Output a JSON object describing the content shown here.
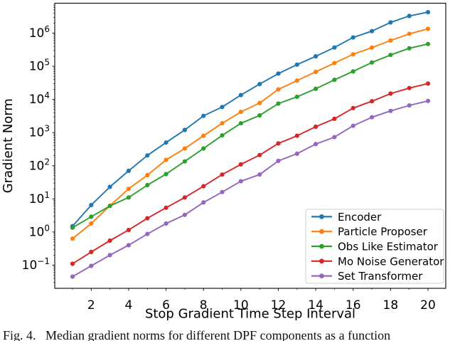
{
  "figure": {
    "caption": "Fig. 4.   Median gradient norms for different DPF components as a function",
    "background": "#ffffff"
  },
  "chart_data": {
    "type": "line",
    "title": "",
    "xlabel": "Stop Gradient Time Step Interval",
    "ylabel": "Gradient Norm",
    "yscale": "log",
    "xlim": [
      0.05,
      20.95
    ],
    "ylim": [
      0.02,
      8000000
    ],
    "xticks": [
      2,
      4,
      6,
      8,
      10,
      12,
      14,
      16,
      18,
      20
    ],
    "ytick_exponents": [
      -1,
      0,
      1,
      2,
      3,
      4,
      5,
      6
    ],
    "grid": false,
    "x": [
      1,
      2,
      3,
      4,
      5,
      6,
      7,
      8,
      9,
      10,
      11,
      12,
      13,
      14,
      15,
      16,
      17,
      18,
      19,
      20
    ],
    "series": [
      {
        "name": "Encoder",
        "color": "#1f77b4",
        "values": [
          1.5,
          6.5,
          23,
          70,
          205,
          500,
          1200,
          3200,
          5900,
          13500,
          29000,
          60000,
          112000,
          200000,
          370000,
          740000,
          1150000,
          2100000,
          3300000,
          4300000
        ]
      },
      {
        "name": "Particle Proposer",
        "color": "#ff7f0e",
        "values": [
          0.63,
          1.8,
          6.2,
          20,
          52,
          150,
          330,
          800,
          1900,
          4200,
          7800,
          20000,
          37000,
          68000,
          125000,
          230000,
          365000,
          600000,
          950000,
          1350000
        ]
      },
      {
        "name": "Obs Like Estimator",
        "color": "#2ca02c",
        "values": [
          1.35,
          2.9,
          6.1,
          11,
          26,
          56,
          135,
          330,
          820,
          1900,
          3300,
          7500,
          12000,
          21000,
          39000,
          70000,
          130000,
          220000,
          350000,
          470000
        ]
      },
      {
        "name": "Mo Noise Generator",
        "color": "#d62728",
        "values": [
          0.11,
          0.25,
          0.55,
          1.15,
          2.6,
          5.4,
          11,
          24,
          54,
          110,
          210,
          470,
          800,
          1500,
          2600,
          5500,
          8800,
          15000,
          22000,
          30000
        ]
      },
      {
        "name": "Set Transformer",
        "color": "#9467bd",
        "values": [
          0.045,
          0.095,
          0.2,
          0.4,
          0.87,
          1.8,
          3.3,
          7.8,
          16,
          34,
          54,
          140,
          230,
          450,
          730,
          1600,
          2900,
          4500,
          6600,
          9000
        ]
      }
    ],
    "legend": {
      "position": "lower right",
      "background": "#ffffff",
      "border_color": "#cccccc",
      "entries": [
        "Encoder",
        "Particle Proposer",
        "Obs Like Estimator",
        "Mo Noise Generator",
        "Set Transformer"
      ]
    }
  }
}
